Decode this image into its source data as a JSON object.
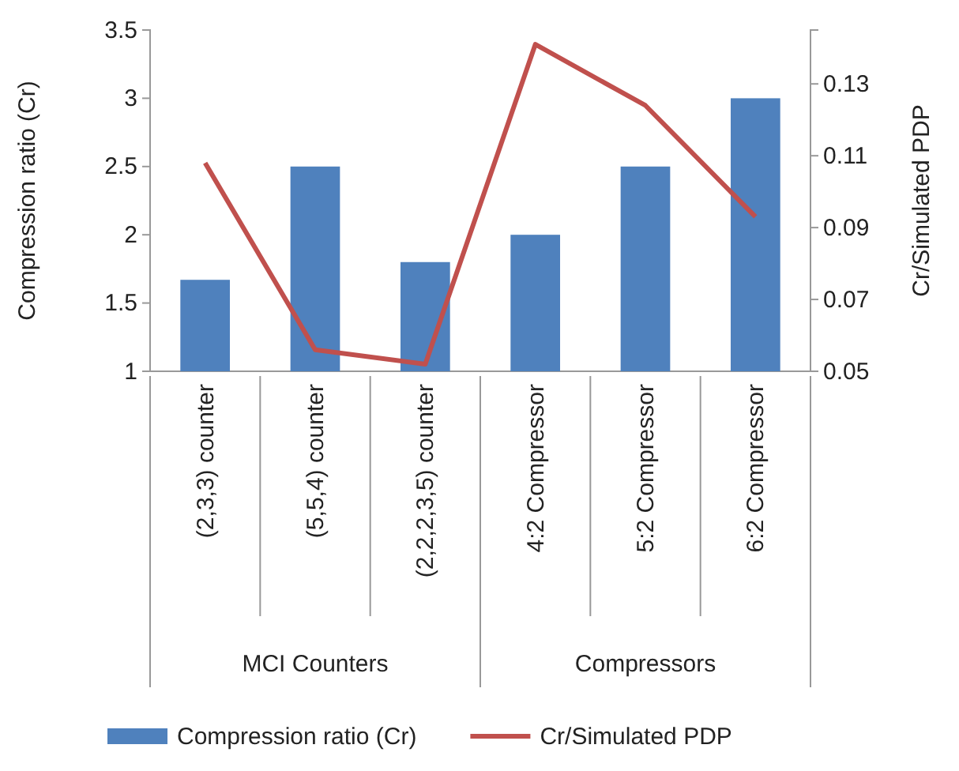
{
  "chart_data": {
    "type": "bar",
    "ylabel": "Compression ratio (Cr)",
    "y2label": "Cr/Simulated PDP",
    "categories": [
      "(2,3,3) counter",
      "(5,5,4) counter",
      "(2,2,2,3,5) counter",
      "4:2 Compressor",
      "5:2 Compressor",
      "6:2 Compressor"
    ],
    "series": [
      {
        "name": "Compression ratio (Cr)",
        "color": "#4f81bd",
        "values": [
          1.67,
          2.5,
          1.8,
          2.0,
          2.5,
          3.0
        ]
      },
      {
        "name": "Cr/Simulated PDP",
        "type": "line",
        "axis": "y2",
        "color": "#c0504d",
        "values": [
          0.108,
          0.056,
          0.052,
          0.141,
          0.124,
          0.093
        ]
      }
    ],
    "ylim": [
      1,
      3.5
    ],
    "yticks": [
      1,
      1.5,
      2,
      2.5,
      3,
      3.5
    ],
    "y2lim": [
      0.05,
      0.145
    ],
    "y2ticks": [
      0.05,
      0.07,
      0.09,
      0.11,
      0.13
    ],
    "annotations": [
      "MCI Counters",
      "Compressors"
    ],
    "legend": "bottom",
    "grid": false
  }
}
